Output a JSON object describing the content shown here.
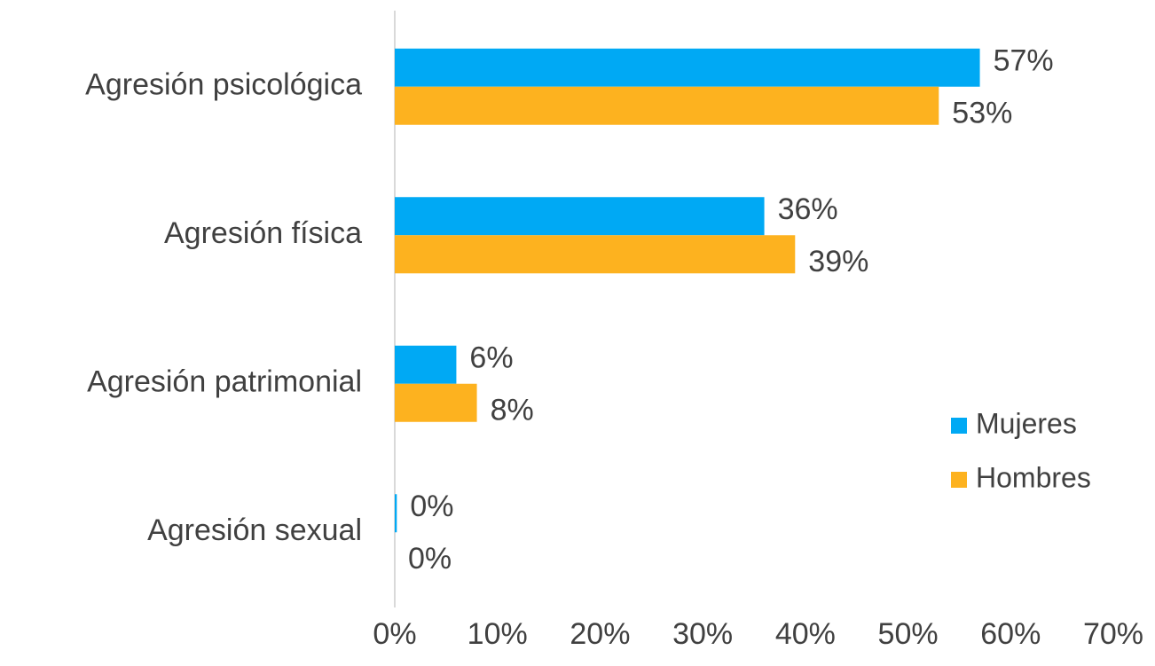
{
  "chart_data": {
    "type": "bar",
    "orientation": "horizontal",
    "categories": [
      "Agresión psicológica",
      "Agresión física",
      "Agresión patrimonial",
      "Agresión sexual"
    ],
    "series": [
      {
        "name": "Mujeres",
        "color": "#00a9f4",
        "values": [
          57,
          36,
          6,
          0.2
        ],
        "value_labels": [
          "57%",
          "36%",
          "6%",
          "0%"
        ]
      },
      {
        "name": "Hombres",
        "color": "#fdb21f",
        "values": [
          53,
          39,
          8,
          0
        ],
        "value_labels": [
          "53%",
          "39%",
          "8%",
          "0%"
        ]
      }
    ],
    "xlim": [
      0,
      70
    ],
    "xticks": [
      {
        "value": 0,
        "label": "0%"
      },
      {
        "value": 10,
        "label": "10%"
      },
      {
        "value": 20,
        "label": "20%"
      },
      {
        "value": 30,
        "label": "30%"
      },
      {
        "value": 40,
        "label": "40%"
      },
      {
        "value": 50,
        "label": "50%"
      },
      {
        "value": 60,
        "label": "60%"
      },
      {
        "value": 70,
        "label": "70%"
      }
    ],
    "legend": "right"
  }
}
